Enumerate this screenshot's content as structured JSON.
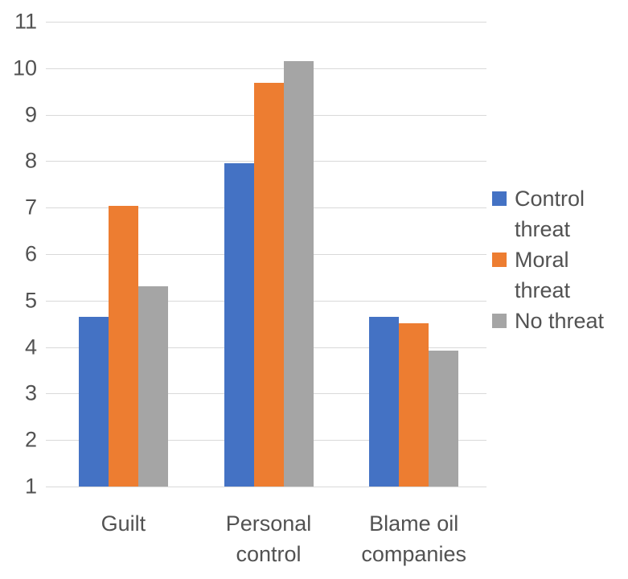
{
  "chart_data": {
    "type": "bar",
    "title": "",
    "categories": [
      "Guilt",
      "Personal control",
      "Blame oil companies"
    ],
    "series": [
      {
        "name": "Control threat",
        "color": "#4472C4",
        "values": [
          4.65,
          7.95,
          4.65
        ]
      },
      {
        "name": "Moral threat",
        "color": "#ED7D31",
        "values": [
          7.03,
          9.68,
          4.52
        ]
      },
      {
        "name": "No threat",
        "color": "#A5A5A5",
        "values": [
          5.3,
          10.15,
          3.93
        ]
      }
    ],
    "ylim": [
      1,
      11
    ],
    "yticks": [
      1,
      2,
      3,
      4,
      5,
      6,
      7,
      8,
      9,
      10,
      11
    ],
    "grid": true,
    "gridline_color": "#D9D9D9",
    "text_color": "#525252",
    "background": "#FFFFFF",
    "legend_position": "right",
    "xlabel": "",
    "ylabel": ""
  }
}
